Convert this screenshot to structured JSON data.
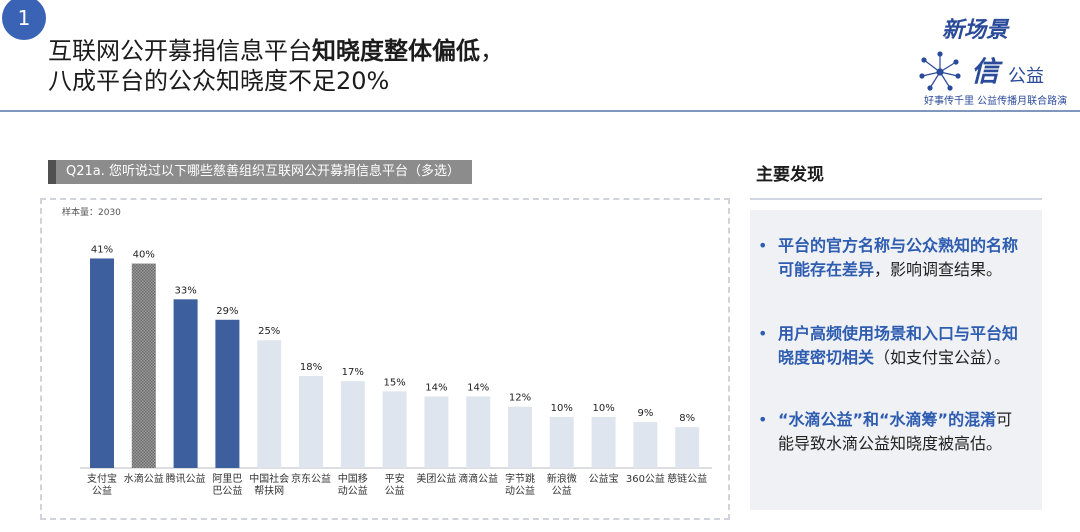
{
  "slide": {
    "number": "1"
  },
  "title": {
    "line1_plain": "互联网公开募捐信息平台",
    "line1_bold": "知晓度整体偏低",
    "line1_end": "，",
    "line2": "八成平台的公众知晓度不足20%"
  },
  "logo": {
    "top": "新场景",
    "mark": "信",
    "mark2": "公益",
    "sub": "好事传千里 公益传播月联合路演",
    "icon": "dandelion-icon"
  },
  "question": "Q21a. 您听说过以下哪些慈善组织互联网公开募捐信息平台（多选）",
  "sample_size": "样本量：2030",
  "chart_data": {
    "type": "bar",
    "categories": [
      "支付宝公益",
      "水滴公益",
      "腾讯公益",
      "阿里巴巴公益",
      "中国社会帮扶网",
      "京东公益",
      "中国移动公益",
      "平安公益",
      "美团公益",
      "滴滴公益",
      "字节跳动公益",
      "新浪微公益",
      "公益宝",
      "360公益",
      "慈链公益"
    ],
    "category_lines": [
      [
        "支付宝",
        "公益"
      ],
      [
        "水滴公益"
      ],
      [
        "腾讯公益"
      ],
      [
        "阿里巴",
        "巴公益"
      ],
      [
        "中国社会",
        "帮扶网"
      ],
      [
        "京东公益"
      ],
      [
        "中国移",
        "动公益"
      ],
      [
        "平安",
        "公益"
      ],
      [
        "美团公益"
      ],
      [
        "滴滴公益"
      ],
      [
        "字节跳",
        "动公益"
      ],
      [
        "新浪微",
        "公益"
      ],
      [
        "公益宝"
      ],
      [
        "360公益"
      ],
      [
        "慈链公益"
      ]
    ],
    "values": [
      41,
      40,
      33,
      29,
      25,
      18,
      17,
      15,
      14,
      14,
      12,
      10,
      10,
      9,
      8
    ],
    "labels": [
      "41%",
      "40%",
      "33%",
      "29%",
      "25%",
      "18%",
      "17%",
      "15%",
      "14%",
      "14%",
      "12%",
      "10%",
      "10%",
      "9%",
      "8%"
    ],
    "styles": [
      "blue",
      "hatched",
      "blue",
      "blue",
      "light",
      "light",
      "light",
      "light",
      "light",
      "light",
      "light",
      "light",
      "light",
      "light",
      "light"
    ],
    "colors": {
      "blue": "#3e5f9e",
      "hatched": "#8a8a8a",
      "light": "#dfe5ee"
    },
    "ylim": [
      0,
      45
    ]
  },
  "findings_title": "主要发现",
  "findings": [
    {
      "hl": "平台的官方名称与公众熟知的名称可能存在差异",
      "rest": "，影响调查结果。"
    },
    {
      "hl": "用户高频使用场景和入口与平台知晓度密切相关",
      "rest": "（如支付宝公益）。"
    },
    {
      "hl": "“水滴公益”和“水滴筹”的混淆",
      "rest": "可能导致水滴公益知晓度被高估。"
    }
  ]
}
